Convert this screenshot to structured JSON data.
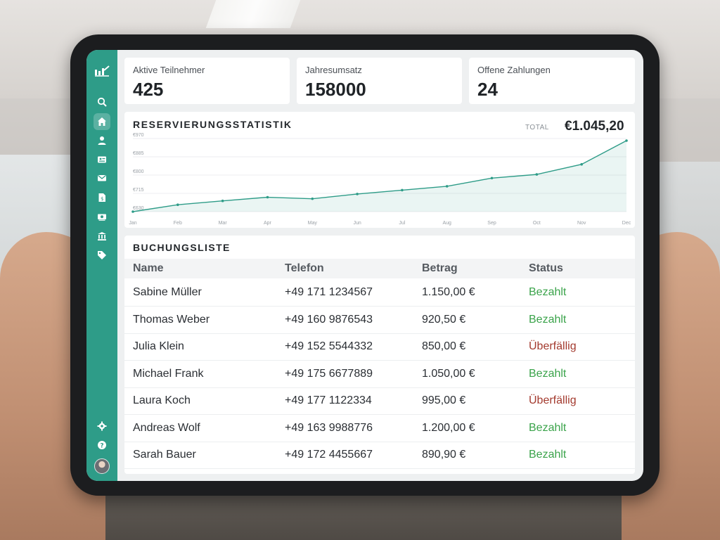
{
  "stats": [
    {
      "label": "Aktive Teilnehmer",
      "value": "425"
    },
    {
      "label": "Jahresumsatz",
      "value": "158000"
    },
    {
      "label": "Offene Zahlungen",
      "value": "24"
    }
  ],
  "sidebar": {
    "items": [
      {
        "name": "search-icon",
        "active": false
      },
      {
        "name": "home-icon",
        "active": true
      },
      {
        "name": "user-icon",
        "active": false
      },
      {
        "name": "id-card-icon",
        "active": false
      },
      {
        "name": "mail-icon",
        "active": false
      },
      {
        "name": "invoice-icon",
        "active": false
      },
      {
        "name": "cash-icon",
        "active": false
      },
      {
        "name": "bank-icon",
        "active": false
      },
      {
        "name": "tag-icon",
        "active": false
      }
    ],
    "bottom": [
      {
        "name": "gear-icon"
      },
      {
        "name": "help-icon"
      }
    ]
  },
  "chart_data": {
    "type": "area",
    "title": "RESERVIERUNGSSTATISTIK",
    "total_label": "TOTAL",
    "total_value": "€1.045,20",
    "categories": [
      "Jan",
      "Feb",
      "Mar",
      "Apr",
      "May",
      "Jun",
      "Jul",
      "Aug",
      "Sep",
      "Oct",
      "Nov",
      "Dec"
    ],
    "values": [
      630,
      662,
      680,
      697,
      690,
      712,
      730,
      748,
      786,
      803,
      850,
      960
    ],
    "yticks": [
      "€630",
      "€715",
      "€800",
      "€885",
      "€970"
    ],
    "ylim": [
      630,
      970
    ],
    "grid": true,
    "color": "#2e9c88"
  },
  "bookings": {
    "title": "BUCHUNGSLISTE",
    "columns": [
      "Name",
      "Telefon",
      "Betrag",
      "Status"
    ],
    "rows": [
      {
        "name": "Sabine Müller",
        "phone": "+49 171 1234567",
        "amount": "1.150,00 €",
        "status": "Bezahlt",
        "paid": true
      },
      {
        "name": "Thomas Weber",
        "phone": "+49 160 9876543",
        "amount": "920,50 €",
        "status": "Bezahlt",
        "paid": true
      },
      {
        "name": "Julia Klein",
        "phone": "+49 152 5544332",
        "amount": "850,00 €",
        "status": "Überfällig",
        "paid": false
      },
      {
        "name": "Michael Frank",
        "phone": "+49 175 6677889",
        "amount": "1.050,00 €",
        "status": "Bezahlt",
        "paid": true
      },
      {
        "name": "Laura Koch",
        "phone": "+49 177 1122334",
        "amount": "995,00 €",
        "status": "Überfällig",
        "paid": false
      },
      {
        "name": "Andreas Wolf",
        "phone": "+49 163 9988776",
        "amount": "1.200,00 €",
        "status": "Bezahlt",
        "paid": true
      },
      {
        "name": "Sarah Bauer",
        "phone": "+49 172 4455667",
        "amount": "890,90 €",
        "status": "Bezahlt",
        "paid": true
      }
    ]
  },
  "colors": {
    "accent": "#2e9c88",
    "paid": "#3aa34a",
    "overdue": "#a33a2e"
  }
}
